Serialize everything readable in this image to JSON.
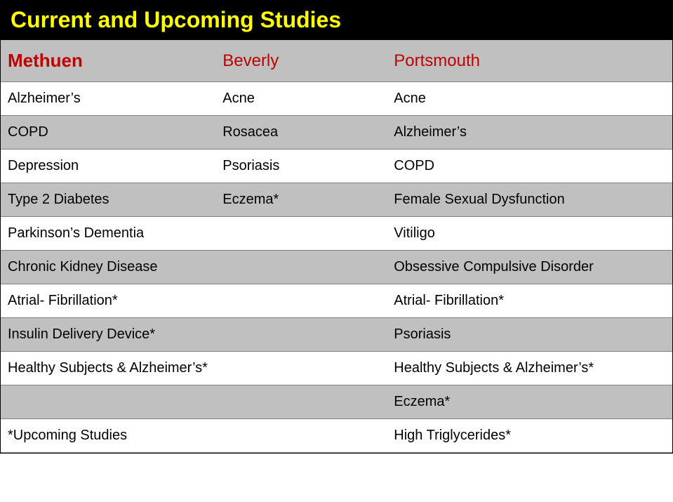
{
  "title": "Current and Upcoming Studies",
  "colors": {
    "title_bg": "#000000",
    "title_text": "#ffff00",
    "header_bg": "#c0c0c0",
    "header_text": "#c00000",
    "row_white": "#ffffff",
    "row_gray": "#c0c0c0",
    "cell_text": "#000000",
    "border": "#808080"
  },
  "typography": {
    "title_fontsize": 32,
    "header_fontsize": 24,
    "header_first_fontsize": 26,
    "cell_fontsize": 20,
    "font_family": "Verdana"
  },
  "table": {
    "type": "table",
    "columns": [
      {
        "label": "Methuen",
        "bold": true,
        "width_pct": 32
      },
      {
        "label": "Beverly",
        "bold": false,
        "width_pct": 25.5
      },
      {
        "label": "Portsmouth",
        "bold": false,
        "width_pct": 42.5
      }
    ],
    "rows": [
      {
        "shade": "white",
        "cells": [
          "Alzheimer’s",
          "Acne",
          "Acne"
        ]
      },
      {
        "shade": "gray",
        "cells": [
          "COPD",
          "Rosacea",
          "Alzheimer’s"
        ]
      },
      {
        "shade": "white",
        "cells": [
          "Depression",
          "Psoriasis",
          "COPD"
        ]
      },
      {
        "shade": "gray",
        "cells": [
          "Type 2 Diabetes",
          "Eczema*",
          "Female Sexual Dysfunction"
        ]
      },
      {
        "shade": "white",
        "cells": [
          "Parkinson’s Dementia",
          "",
          "Vitiligo"
        ]
      },
      {
        "shade": "gray",
        "cells": [
          "Chronic Kidney Disease",
          "",
          "Obsessive Compulsive Disorder"
        ]
      },
      {
        "shade": "white",
        "cells": [
          "Atrial- Fibrillation*",
          "",
          "Atrial- Fibrillation*"
        ]
      },
      {
        "shade": "gray",
        "cells": [
          "Insulin Delivery Device*",
          "",
          "Psoriasis"
        ]
      },
      {
        "shade": "white",
        "cells": [
          "Healthy Subjects & Alzheimer’s*",
          "",
          "Healthy Subjects & Alzheimer’s*"
        ]
      },
      {
        "shade": "gray",
        "cells": [
          "",
          "",
          "Eczema*"
        ]
      },
      {
        "shade": "white",
        "cells": [
          "*Upcoming Studies",
          "",
          "High Triglycerides*"
        ]
      }
    ]
  }
}
